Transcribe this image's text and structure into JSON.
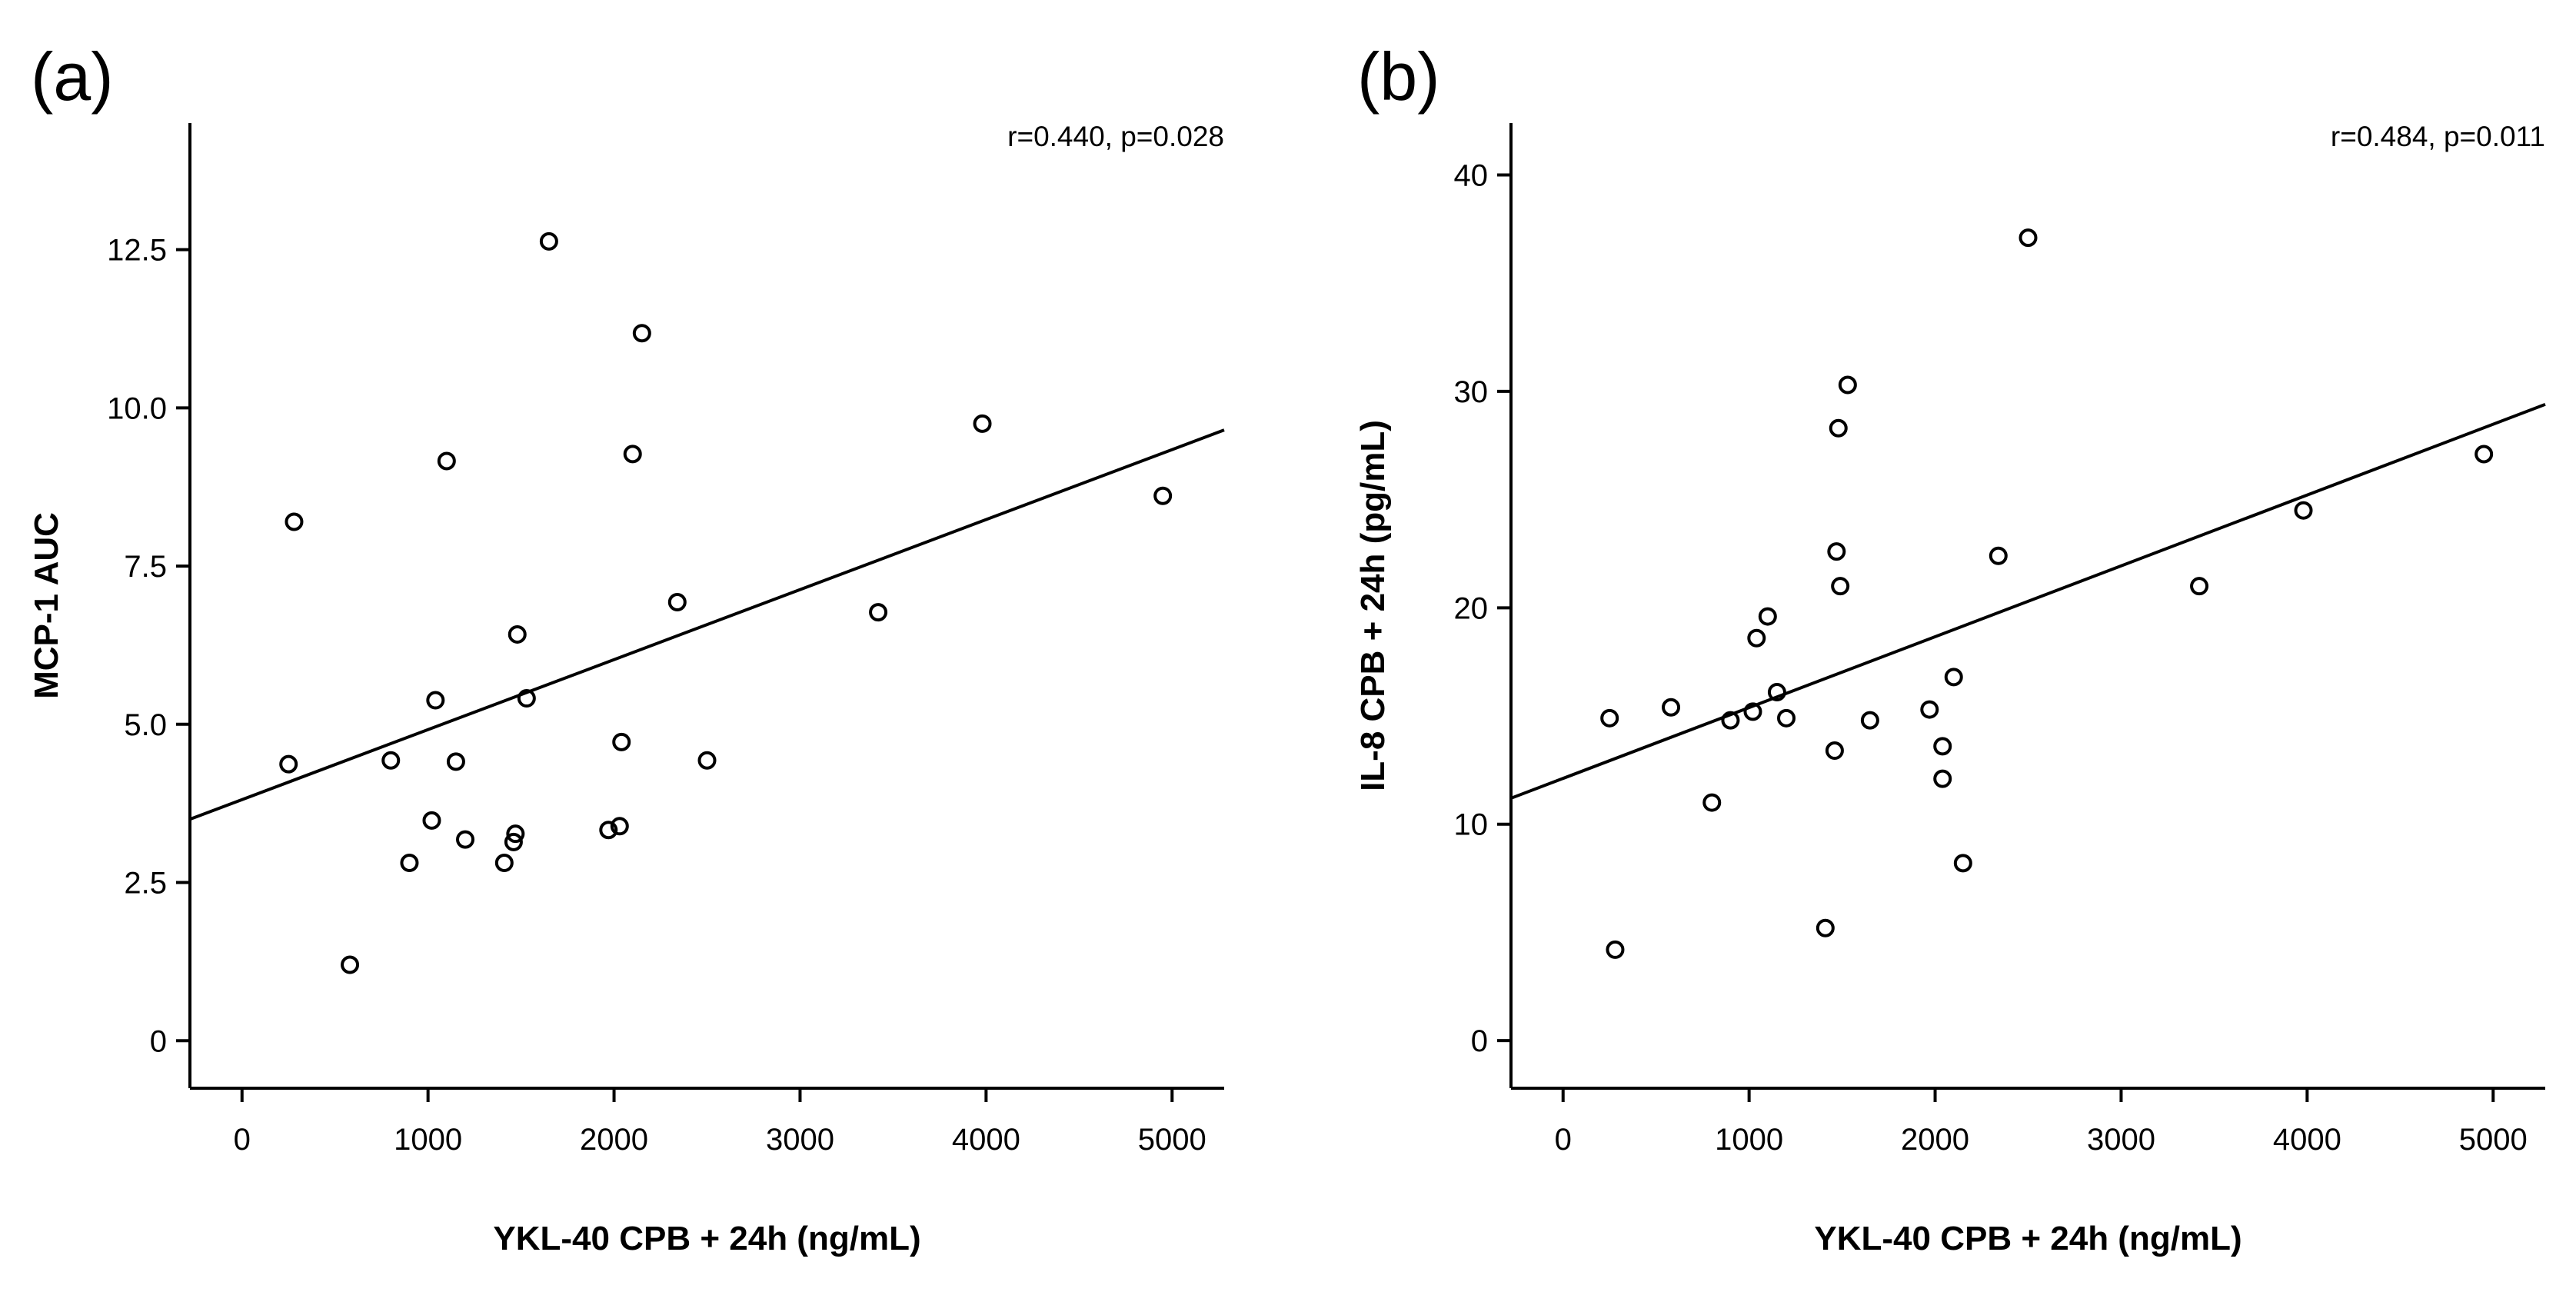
{
  "chart_data": [
    {
      "type": "scatter",
      "panel_label": "(a)",
      "stat_text": "r=0.440, p=0.028",
      "xlabel": "YKL-40 CPB + 24h (ng/mL)",
      "ylabel": "MCP-1 AUC",
      "xlim": [
        -280,
        5280
      ],
      "ylim": [
        -0.75,
        14.5
      ],
      "xticks": [
        0,
        1000,
        2000,
        3000,
        4000,
        5000
      ],
      "xtick_labels": [
        "0",
        "1000",
        "2000",
        "3000",
        "4000",
        "5000"
      ],
      "yticks": [
        0,
        2.5,
        5.0,
        7.5,
        10.0,
        12.5
      ],
      "ytick_labels": [
        "0",
        "2.5",
        "5.0",
        "7.5",
        "10.0",
        "12.5"
      ],
      "fit_line": {
        "x": [
          -280,
          5280
        ],
        "y": [
          3.5,
          9.65
        ]
      },
      "points": [
        {
          "x": 250,
          "y": 4.37
        },
        {
          "x": 280,
          "y": 8.2
        },
        {
          "x": 580,
          "y": 1.2
        },
        {
          "x": 800,
          "y": 4.43
        },
        {
          "x": 900,
          "y": 2.81
        },
        {
          "x": 1020,
          "y": 3.48
        },
        {
          "x": 1040,
          "y": 5.38
        },
        {
          "x": 1100,
          "y": 9.16
        },
        {
          "x": 1150,
          "y": 4.41
        },
        {
          "x": 1200,
          "y": 3.18
        },
        {
          "x": 1410,
          "y": 2.81
        },
        {
          "x": 1460,
          "y": 3.14
        },
        {
          "x": 1470,
          "y": 3.27
        },
        {
          "x": 1480,
          "y": 6.42
        },
        {
          "x": 1530,
          "y": 5.41
        },
        {
          "x": 1650,
          "y": 12.63
        },
        {
          "x": 1970,
          "y": 3.33
        },
        {
          "x": 2030,
          "y": 3.39
        },
        {
          "x": 2040,
          "y": 4.72
        },
        {
          "x": 2100,
          "y": 9.27
        },
        {
          "x": 2150,
          "y": 11.18
        },
        {
          "x": 2340,
          "y": 6.93
        },
        {
          "x": 2500,
          "y": 4.43
        },
        {
          "x": 3420,
          "y": 6.77
        },
        {
          "x": 3980,
          "y": 9.75
        },
        {
          "x": 4950,
          "y": 8.61
        }
      ]
    },
    {
      "type": "scatter",
      "panel_label": "(b)",
      "stat_text": "r=0.484, p=0.011",
      "xlabel": "YKL-40 CPB + 24h (ng/mL)",
      "ylabel": "IL-8 CPB + 24h (pg/mL)",
      "xlim": [
        -280,
        5280
      ],
      "ylim": [
        -2.2,
        42.4
      ],
      "xticks": [
        0,
        1000,
        2000,
        3000,
        4000,
        5000
      ],
      "xtick_labels": [
        "0",
        "1000",
        "2000",
        "3000",
        "4000",
        "5000"
      ],
      "yticks": [
        0,
        10,
        20,
        30,
        40
      ],
      "ytick_labels": [
        "0",
        "10",
        "20",
        "30",
        "40"
      ],
      "fit_line": {
        "x": [
          -280,
          5280
        ],
        "y": [
          11.2,
          29.4
        ]
      },
      "points": [
        {
          "x": 250,
          "y": 14.9
        },
        {
          "x": 280,
          "y": 4.2
        },
        {
          "x": 580,
          "y": 15.4
        },
        {
          "x": 800,
          "y": 11.0
        },
        {
          "x": 900,
          "y": 14.8
        },
        {
          "x": 1020,
          "y": 15.2
        },
        {
          "x": 1040,
          "y": 18.6
        },
        {
          "x": 1100,
          "y": 19.6
        },
        {
          "x": 1150,
          "y": 16.1
        },
        {
          "x": 1200,
          "y": 14.9
        },
        {
          "x": 1410,
          "y": 5.2
        },
        {
          "x": 1460,
          "y": 13.4
        },
        {
          "x": 1470,
          "y": 22.6
        },
        {
          "x": 1480,
          "y": 28.3
        },
        {
          "x": 1490,
          "y": 21.0
        },
        {
          "x": 1530,
          "y": 30.3
        },
        {
          "x": 1650,
          "y": 14.8
        },
        {
          "x": 1970,
          "y": 15.3
        },
        {
          "x": 2040,
          "y": 13.6
        },
        {
          "x": 2040,
          "y": 12.1
        },
        {
          "x": 2100,
          "y": 16.8
        },
        {
          "x": 2150,
          "y": 8.2
        },
        {
          "x": 2340,
          "y": 22.4
        },
        {
          "x": 2500,
          "y": 37.1
        },
        {
          "x": 3420,
          "y": 21.0
        },
        {
          "x": 3980,
          "y": 24.5
        },
        {
          "x": 4950,
          "y": 27.1
        }
      ]
    }
  ]
}
